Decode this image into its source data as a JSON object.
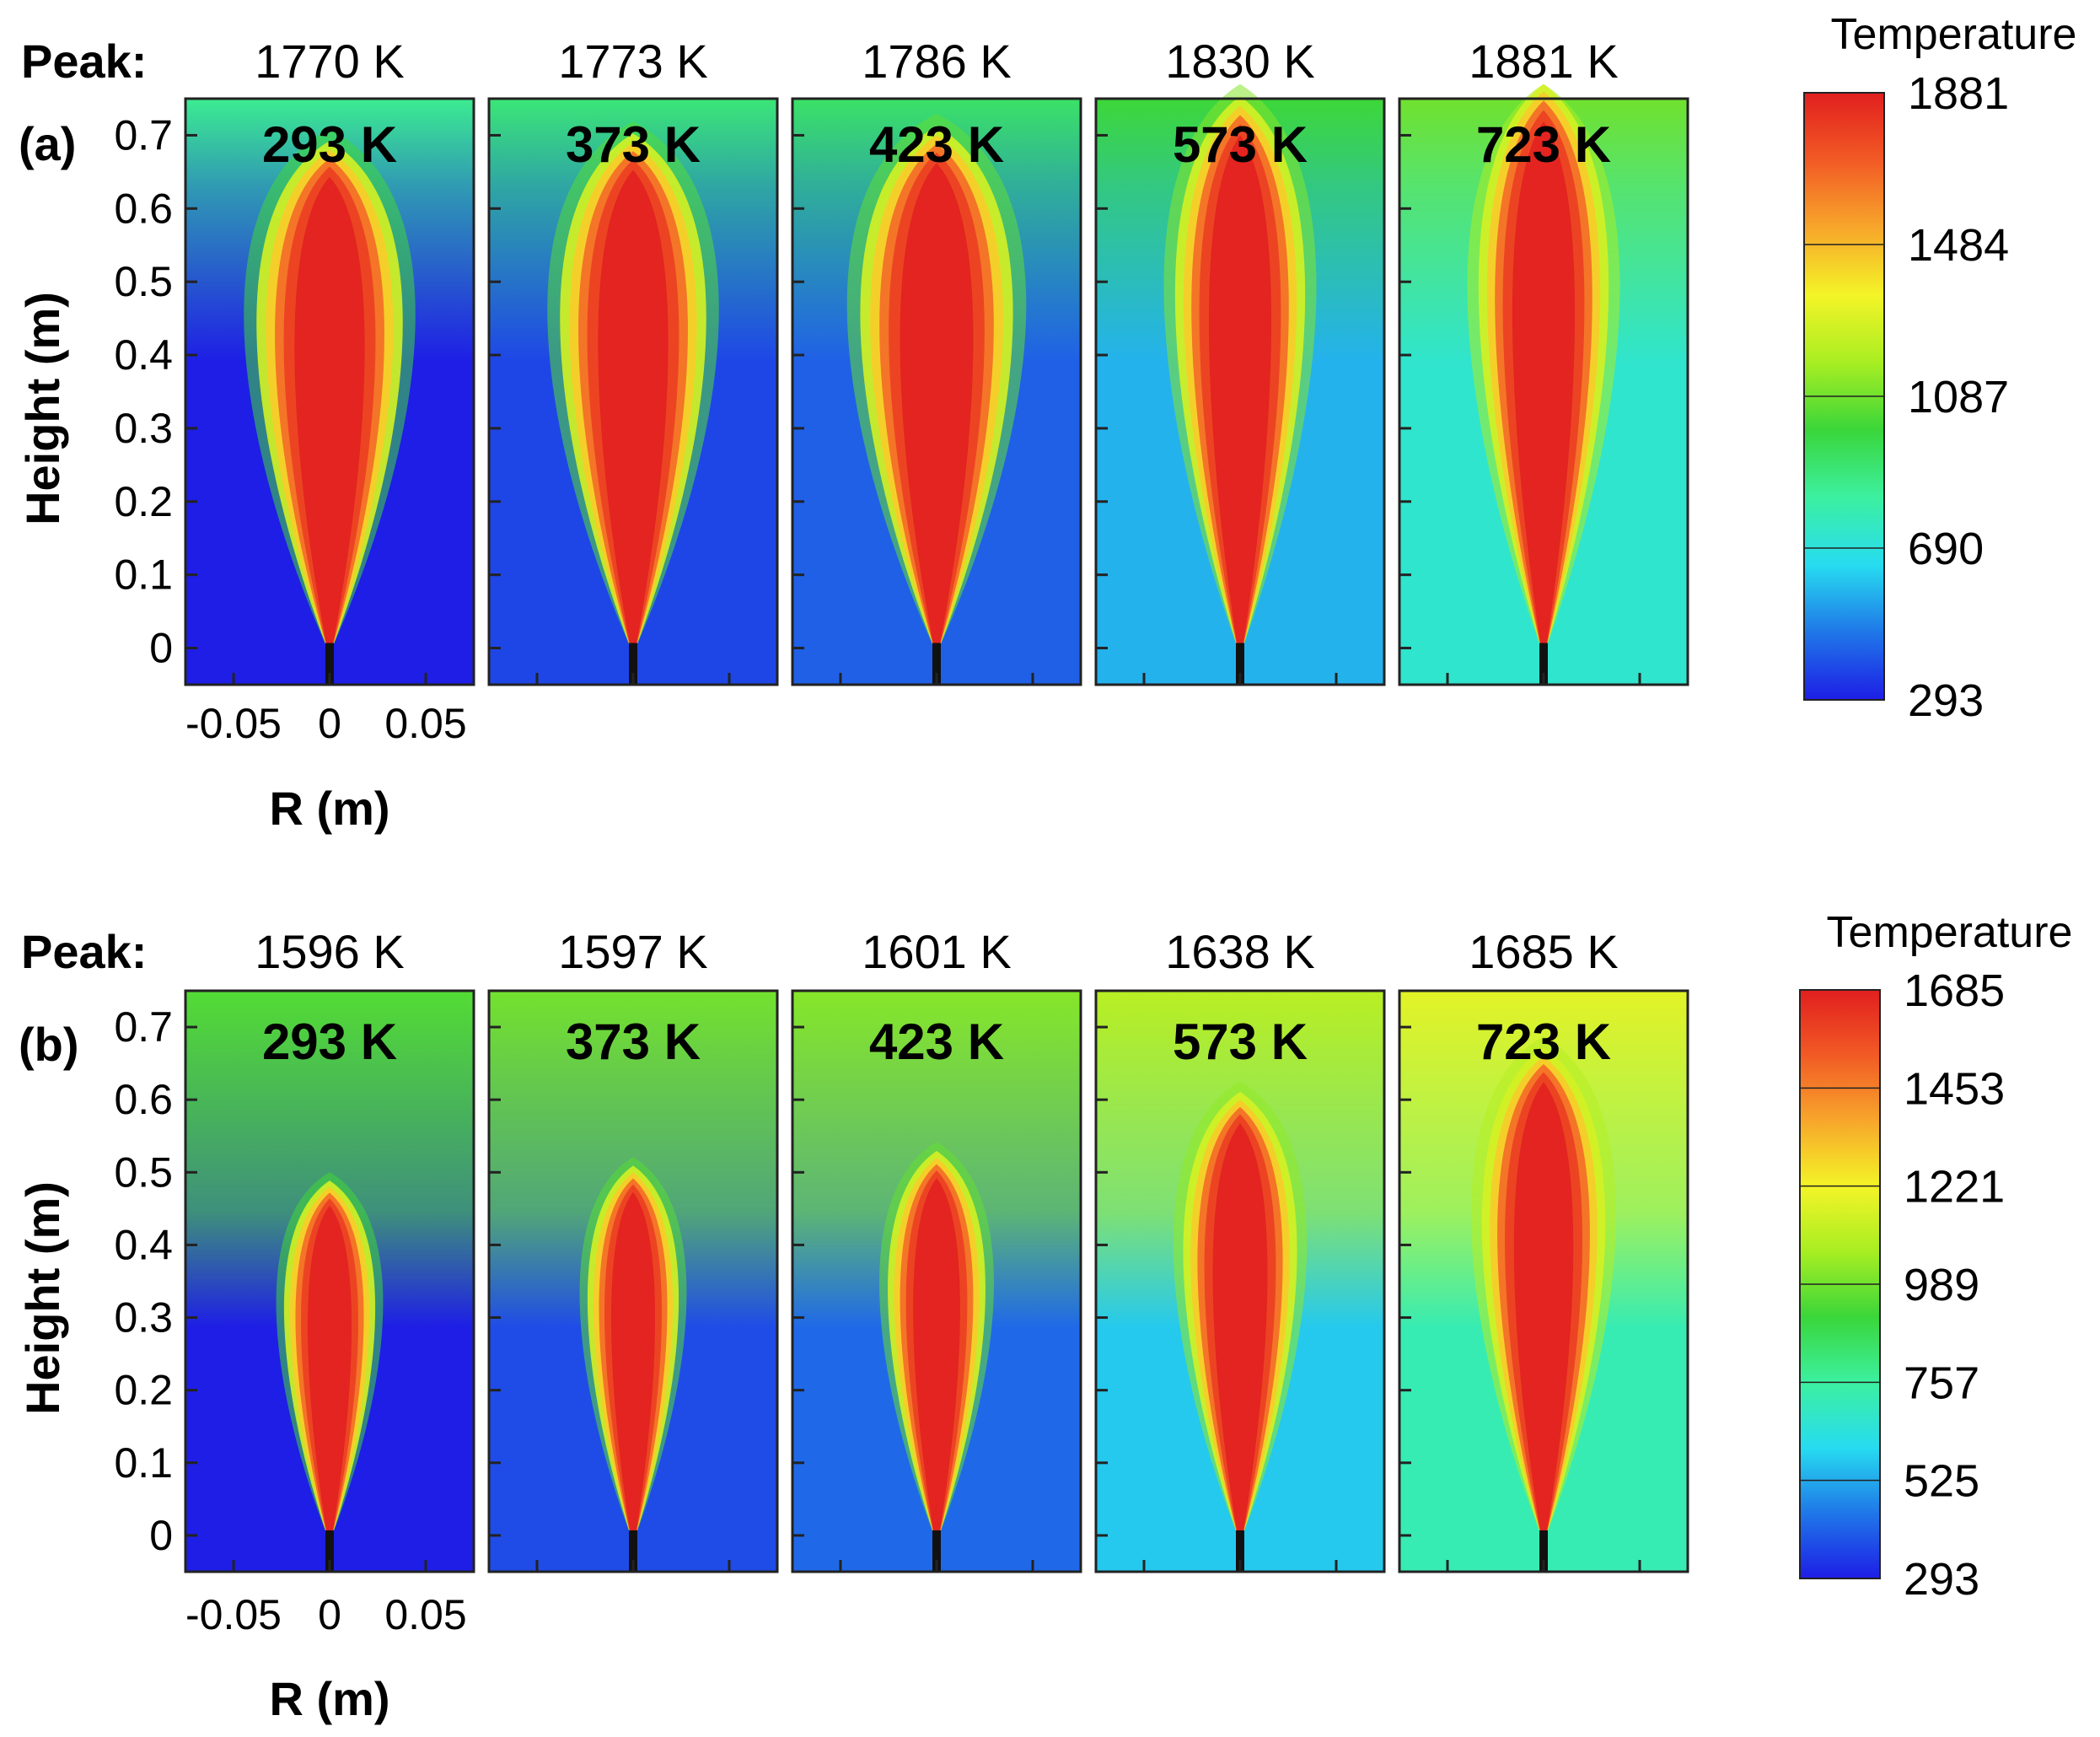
{
  "figure": {
    "colors": {
      "ramp": [
        "#1e1ee6",
        "#1f77e8",
        "#27dcf0",
        "#3cf0a0",
        "#3ad63a",
        "#a8ee22",
        "#f4f427",
        "#f7a62b",
        "#f25a25",
        "#e11f1f"
      ]
    }
  },
  "chart_data": [
    {
      "type": "heatmap",
      "panel_label": "(a)",
      "peak_label": "Peak:",
      "peaks": [
        "1770 K",
        "1773 K",
        "1786 K",
        "1830 K",
        "1881 K"
      ],
      "peak_values": [
        1770,
        1773,
        1786,
        1830,
        1881
      ],
      "inlet_labels": [
        "293 K",
        "373 K",
        "423 K",
        "573 K",
        "723 K"
      ],
      "inlet_temps": [
        293,
        373,
        423,
        573,
        723
      ],
      "flame_tip_height": [
        0.68,
        0.69,
        0.7,
        0.74,
        0.76
      ],
      "flame_halfwidth": [
        0.045,
        0.045,
        0.047,
        0.04,
        0.04
      ],
      "ylabel": "Height (m)",
      "xlabel": "R (m)",
      "yticks": [
        "0",
        "0.1",
        "0.2",
        "0.3",
        "0.4",
        "0.5",
        "0.6",
        "0.7"
      ],
      "ytick_values": [
        0,
        0.1,
        0.2,
        0.3,
        0.4,
        0.5,
        0.6,
        0.7
      ],
      "xticks": [
        "-0.05",
        "0",
        "0.05"
      ],
      "xtick_values": [
        -0.05,
        0,
        0.05
      ],
      "xlim": [
        -0.075,
        0.075
      ],
      "ylim": [
        -0.05,
        0.75
      ],
      "colorbar": {
        "title": "Temperature",
        "ticks": [
          "1881",
          "1484",
          "1087",
          "690",
          "293"
        ],
        "values": [
          1881,
          1484,
          1087,
          690,
          293
        ],
        "range": [
          293,
          1881
        ]
      }
    },
    {
      "type": "heatmap",
      "panel_label": "(b)",
      "peak_label": "Peak:",
      "peaks": [
        "1596 K",
        "1597 K",
        "1601 K",
        "1638 K",
        "1685 K"
      ],
      "peak_values": [
        1596,
        1597,
        1601,
        1638,
        1685
      ],
      "inlet_labels": [
        "293 K",
        "373 K",
        "423 K",
        "573 K",
        "723 K"
      ],
      "inlet_temps": [
        293,
        373,
        423,
        573,
        723
      ],
      "flame_tip_height": [
        0.48,
        0.5,
        0.52,
        0.6,
        0.66
      ],
      "flame_halfwidth": [
        0.028,
        0.028,
        0.03,
        0.035,
        0.038
      ],
      "ylabel": "Height (m)",
      "xlabel": "R (m)",
      "yticks": [
        "0",
        "0.1",
        "0.2",
        "0.3",
        "0.4",
        "0.5",
        "0.6",
        "0.7"
      ],
      "ytick_values": [
        0,
        0.1,
        0.2,
        0.3,
        0.4,
        0.5,
        0.6,
        0.7
      ],
      "xticks": [
        "-0.05",
        "0",
        "0.05"
      ],
      "xtick_values": [
        -0.05,
        0,
        0.05
      ],
      "xlim": [
        -0.075,
        0.075
      ],
      "ylim": [
        -0.05,
        0.75
      ],
      "colorbar": {
        "title": "Temperature",
        "ticks": [
          "1685",
          "1453",
          "1221",
          "989",
          "757",
          "525",
          "293"
        ],
        "values": [
          1685,
          1453,
          1221,
          989,
          757,
          525,
          293
        ],
        "range": [
          293,
          1685
        ]
      }
    }
  ]
}
